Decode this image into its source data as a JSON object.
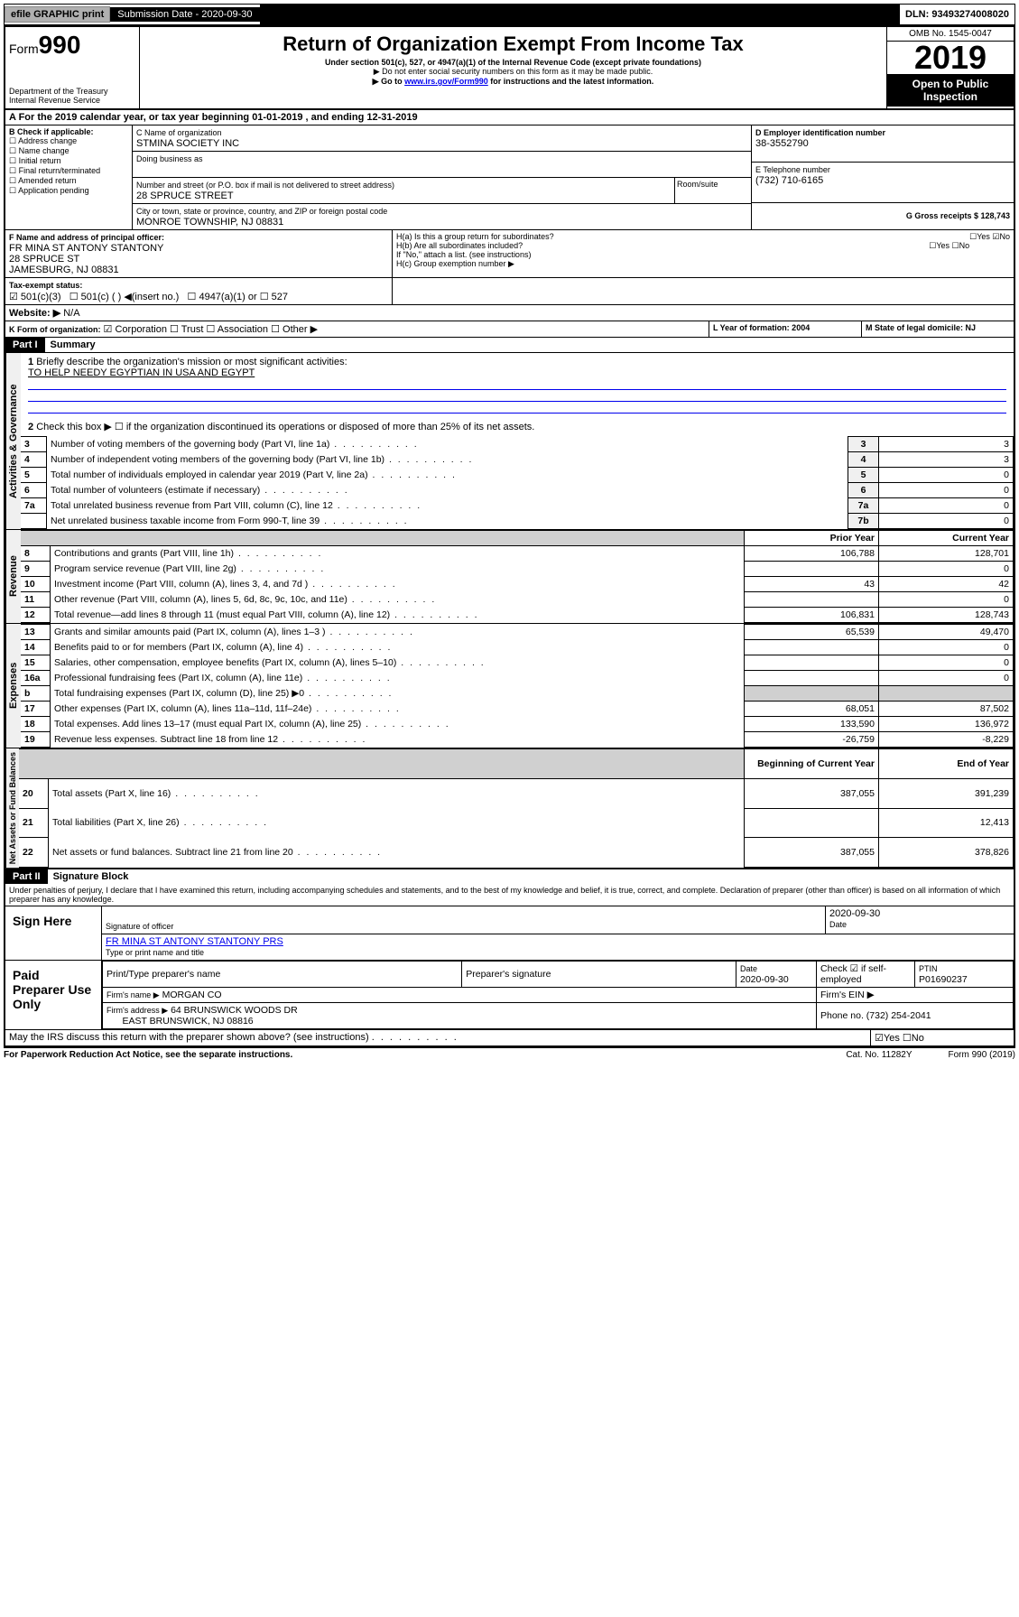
{
  "topbar": {
    "efile": "efile GRAPHIC print",
    "subdate_label": "Submission Date - 2020-09-30",
    "dln": "DLN: 93493274008020"
  },
  "header": {
    "form": "Form",
    "num": "990",
    "dept": "Department of the Treasury",
    "irs": "Internal Revenue Service",
    "title": "Return of Organization Exempt From Income Tax",
    "sub1": "Under section 501(c), 527, or 4947(a)(1) of the Internal Revenue Code (except private foundations)",
    "sub2": "▶ Do not enter social security numbers on this form as it may be made public.",
    "sub3_pre": "▶ Go to ",
    "sub3_link": "www.irs.gov/Form990",
    "sub3_post": " for instructions and the latest information.",
    "omb": "OMB No. 1545-0047",
    "year": "2019",
    "open": "Open to Public Inspection"
  },
  "period": {
    "a": "A For the 2019 calendar year, or tax year beginning 01-01-2019    , and ending 12-31-2019"
  },
  "boxB": {
    "label": "B Check if applicable:",
    "opts": [
      "Address change",
      "Name change",
      "Initial return",
      "Final return/terminated",
      "Amended return",
      "Application pending"
    ]
  },
  "boxC": {
    "label": "C Name of organization",
    "name": "STMINA SOCIETY INC",
    "dba": "Doing business as",
    "addr_label": "Number and street (or P.O. box if mail is not delivered to street address)",
    "room": "Room/suite",
    "addr": "28 SPRUCE STREET",
    "city_label": "City or town, state or province, country, and ZIP or foreign postal code",
    "city": "MONROE TOWNSHIP, NJ  08831"
  },
  "boxD": {
    "label": "D Employer identification number",
    "ein": "38-3552790"
  },
  "boxE": {
    "label": "E Telephone number",
    "phone": "(732) 710-6165"
  },
  "boxG": {
    "label": "G Gross receipts $ 128,743"
  },
  "boxF": {
    "label": "F Name and address of principal officer:",
    "name": "FR MINA ST ANTONY STANTONY",
    "addr": "28 SPRUCE ST",
    "city": "JAMESBURG, NJ  08831"
  },
  "boxH": {
    "a": "H(a)  Is this a group return for subordinates?",
    "b": "H(b)  Are all subordinates included?",
    "note": "If \"No,\" attach a list. (see instructions)",
    "c": "H(c)  Group exemption number ▶",
    "yes": "Yes",
    "no": "No"
  },
  "boxI": {
    "label": "Tax-exempt status:",
    "o1": "501(c)(3)",
    "o2": "501(c) (  ) ◀(insert no.)",
    "o3": "4947(a)(1) or",
    "o4": "527"
  },
  "boxJ": {
    "label": "Website: ▶",
    "val": "N/A"
  },
  "boxK": {
    "label": "K Form of organization:",
    "o1": "Corporation",
    "o2": "Trust",
    "o3": "Association",
    "o4": "Other ▶"
  },
  "boxL": {
    "label": "L Year of formation: 2004"
  },
  "boxM": {
    "label": "M State of legal domicile: NJ"
  },
  "part1": {
    "hdr": "Part I",
    "title": "Summary"
  },
  "summary": {
    "l1": "Briefly describe the organization's mission or most significant activities:",
    "mission": "TO HELP NEEDY EGYPTIAN IN USA AND EGYPT",
    "l2": "Check this box ▶ ☐  if the organization discontinued its operations or disposed of more than 25% of its net assets.",
    "rows": [
      {
        "n": "3",
        "t": "Number of voting members of the governing body (Part VI, line 1a)",
        "c": "3",
        "v": "3"
      },
      {
        "n": "4",
        "t": "Number of independent voting members of the governing body (Part VI, line 1b)",
        "c": "4",
        "v": "3"
      },
      {
        "n": "5",
        "t": "Total number of individuals employed in calendar year 2019 (Part V, line 2a)",
        "c": "5",
        "v": "0"
      },
      {
        "n": "6",
        "t": "Total number of volunteers (estimate if necessary)",
        "c": "6",
        "v": "0"
      },
      {
        "n": "7a",
        "t": "Total unrelated business revenue from Part VIII, column (C), line 12",
        "c": "7a",
        "v": "0"
      },
      {
        "n": "",
        "t": "Net unrelated business taxable income from Form 990-T, line 39",
        "c": "7b",
        "v": "0"
      }
    ]
  },
  "sections": {
    "gov": "Activities & Governance",
    "rev": "Revenue",
    "exp": "Expenses",
    "net": "Net Assets or Fund Balances"
  },
  "cols": {
    "prior": "Prior Year",
    "current": "Current Year",
    "beg": "Beginning of Current Year",
    "end": "End of Year"
  },
  "revenue": [
    {
      "n": "8",
      "t": "Contributions and grants (Part VIII, line 1h)",
      "p": "106,788",
      "c": "128,701"
    },
    {
      "n": "9",
      "t": "Program service revenue (Part VIII, line 2g)",
      "p": "",
      "c": "0"
    },
    {
      "n": "10",
      "t": "Investment income (Part VIII, column (A), lines 3, 4, and 7d )",
      "p": "43",
      "c": "42"
    },
    {
      "n": "11",
      "t": "Other revenue (Part VIII, column (A), lines 5, 6d, 8c, 9c, 10c, and 11e)",
      "p": "",
      "c": "0"
    },
    {
      "n": "12",
      "t": "Total revenue—add lines 8 through 11 (must equal Part VIII, column (A), line 12)",
      "p": "106,831",
      "c": "128,743"
    }
  ],
  "expenses": [
    {
      "n": "13",
      "t": "Grants and similar amounts paid (Part IX, column (A), lines 1–3 )",
      "p": "65,539",
      "c": "49,470"
    },
    {
      "n": "14",
      "t": "Benefits paid to or for members (Part IX, column (A), line 4)",
      "p": "",
      "c": "0"
    },
    {
      "n": "15",
      "t": "Salaries, other compensation, employee benefits (Part IX, column (A), lines 5–10)",
      "p": "",
      "c": "0"
    },
    {
      "n": "16a",
      "t": "Professional fundraising fees (Part IX, column (A), line 11e)",
      "p": "",
      "c": "0"
    },
    {
      "n": "b",
      "t": "Total fundraising expenses (Part IX, column (D), line 25) ▶0",
      "p": "",
      "c": "",
      "shade": true
    },
    {
      "n": "17",
      "t": "Other expenses (Part IX, column (A), lines 11a–11d, 11f–24e)",
      "p": "68,051",
      "c": "87,502"
    },
    {
      "n": "18",
      "t": "Total expenses. Add lines 13–17 (must equal Part IX, column (A), line 25)",
      "p": "133,590",
      "c": "136,972"
    },
    {
      "n": "19",
      "t": "Revenue less expenses. Subtract line 18 from line 12",
      "p": "-26,759",
      "c": "-8,229"
    }
  ],
  "netassets": [
    {
      "n": "20",
      "t": "Total assets (Part X, line 16)",
      "p": "387,055",
      "c": "391,239"
    },
    {
      "n": "21",
      "t": "Total liabilities (Part X, line 26)",
      "p": "",
      "c": "12,413"
    },
    {
      "n": "22",
      "t": "Net assets or fund balances. Subtract line 21 from line 20",
      "p": "387,055",
      "c": "378,826"
    }
  ],
  "part2": {
    "hdr": "Part II",
    "title": "Signature Block",
    "perjury": "Under penalties of perjury, I declare that I have examined this return, including accompanying schedules and statements, and to the best of my knowledge and belief, it is true, correct, and complete. Declaration of preparer (other than officer) is based on all information of which preparer has any knowledge."
  },
  "sign": {
    "here": "Sign Here",
    "sig": "Signature of officer",
    "date": "2020-09-30",
    "datel": "Date",
    "name": "FR MINA ST ANTONY STANTONY PRS",
    "namel": "Type or print name and title"
  },
  "paid": {
    "label": "Paid Preparer Use Only",
    "h1": "Print/Type preparer's name",
    "h2": "Preparer's signature",
    "h3": "Date",
    "h4": "Check ☑ if self-employed",
    "h5": "PTIN",
    "date": "2020-09-30",
    "ptin": "P01690237",
    "firm_l": "Firm's name  ▶",
    "firm": "MORGAN CO",
    "ein_l": "Firm's EIN ▶",
    "addr_l": "Firm's address ▶",
    "addr": "64 BRUNSWICK WOODS DR",
    "city": "EAST BRUNSWICK, NJ  08816",
    "phone_l": "Phone no. (732) 254-2041"
  },
  "footer": {
    "discuss": "May the IRS discuss this return with the preparer shown above? (see instructions)",
    "yes": "Yes",
    "no": "No",
    "pra": "For Paperwork Reduction Act Notice, see the separate instructions.",
    "cat": "Cat. No. 11282Y",
    "form": "Form 990 (2019)"
  }
}
